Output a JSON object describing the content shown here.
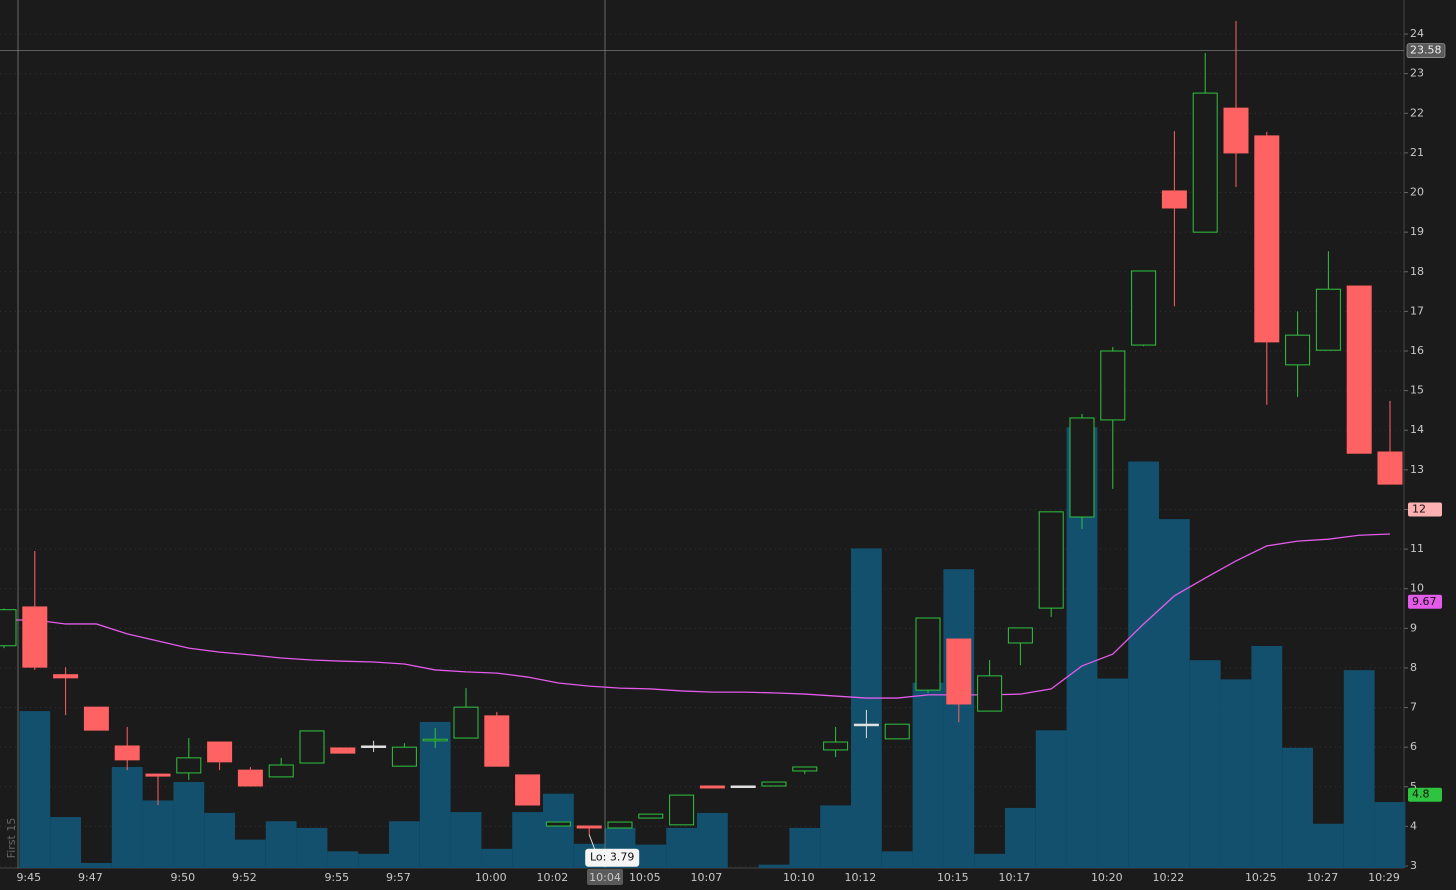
{
  "chart_data": {
    "type": "candlestick",
    "categories": [
      null,
      "9:45",
      null,
      "9:47",
      null,
      null,
      "9:50",
      null,
      "9:52",
      null,
      null,
      "9:55",
      null,
      "9:57",
      null,
      null,
      "10:00",
      null,
      "10:02",
      null,
      "10:04",
      "10:05",
      null,
      "10:07",
      null,
      null,
      "10:10",
      null,
      "10:12",
      null,
      null,
      "10:15",
      null,
      "10:17",
      null,
      null,
      "10:20",
      null,
      "10:22",
      null,
      null,
      "10:25",
      null,
      "10:27",
      null,
      "10:29"
    ],
    "open": [
      8.56,
      9.54,
      7.83,
      7.01,
      6.03,
      5.32,
      5.35,
      6.13,
      5.42,
      5.25,
      5.6,
      5.98,
      6.03,
      5.52,
      6.16,
      6.23,
      6.79,
      5.3,
      4.01,
      4.01,
      3.96,
      4.21,
      4.04,
      5.02,
      5.02,
      5.02,
      5.4,
      5.93,
      6.58,
      6.21,
      7.44,
      8.73,
      6.91,
      8.63,
      9.51,
      11.81,
      14.26,
      16.15,
      20.04,
      19.0,
      22.13,
      21.43,
      15.65,
      16.02,
      17.64,
      13.45
    ],
    "high": [
      9.5,
      10.95,
      8.02,
      7.01,
      6.51,
      5.32,
      6.23,
      6.13,
      5.5,
      5.73,
      6.41,
      5.98,
      6.16,
      6.1,
      6.48,
      7.49,
      6.89,
      5.3,
      4.11,
      4.01,
      4.11,
      4.31,
      4.79,
      5.02,
      5.02,
      5.12,
      5.5,
      6.51,
      6.94,
      6.58,
      9.26,
      8.73,
      8.2,
      9.01,
      11.94,
      14.41,
      16.1,
      18.02,
      21.55,
      23.52,
      24.33,
      21.53,
      17.0,
      18.52,
      17.64,
      14.74
    ],
    "low": [
      8.5,
      7.95,
      6.81,
      6.43,
      5.42,
      4.54,
      5.17,
      5.42,
      5.02,
      5.25,
      5.6,
      5.85,
      5.88,
      5.52,
      5.98,
      6.23,
      5.52,
      4.54,
      4.01,
      3.79,
      3.96,
      4.21,
      4.04,
      4.97,
      5.02,
      5.02,
      5.32,
      5.75,
      6.23,
      6.21,
      7.37,
      6.63,
      6.91,
      8.07,
      9.29,
      11.51,
      12.52,
      16.12,
      17.13,
      19.0,
      20.14,
      14.64,
      14.84,
      16.02,
      13.42,
      12.64
    ],
    "close": [
      9.47,
      8.02,
      7.75,
      6.43,
      5.68,
      5.27,
      5.73,
      5.63,
      5.02,
      5.55,
      6.41,
      5.85,
      6.03,
      6.0,
      6.2,
      7.01,
      5.52,
      4.54,
      4.11,
      3.96,
      4.11,
      4.31,
      4.79,
      4.97,
      5.02,
      5.12,
      5.5,
      6.13,
      6.58,
      6.58,
      9.26,
      7.09,
      7.8,
      9.01,
      11.94,
      14.31,
      16.0,
      18.02,
      19.61,
      22.51,
      21.0,
      16.23,
      16.4,
      17.56,
      13.42,
      12.64
    ],
    "volume": [
      null,
      18.8,
      6.1,
      0.6,
      12.1,
      8.1,
      10.3,
      6.6,
      3.4,
      5.6,
      4.8,
      2.0,
      1.7,
      5.6,
      17.5,
      6.7,
      2.3,
      6.7,
      8.9,
      2.9,
      4.8,
      2.8,
      4.8,
      6.6,
      0,
      0.4,
      4.8,
      7.5,
      38.3,
      2.0,
      22.2,
      35.8,
      1.7,
      7.2,
      16.5,
      52.8,
      22.7,
      48.7,
      41.8,
      24.9,
      22.6,
      26.6,
      14.4,
      5.3,
      23.7,
      7.9
    ],
    "ma": {
      "color": "#e25be9",
      "values": [
        9.21,
        9.21,
        9.11,
        9.11,
        8.86,
        8.68,
        8.5,
        8.4,
        8.33,
        8.25,
        8.2,
        8.17,
        8.15,
        8.1,
        7.95,
        7.9,
        7.87,
        7.77,
        7.62,
        7.54,
        7.49,
        7.47,
        7.42,
        7.39,
        7.39,
        7.37,
        7.34,
        7.29,
        7.24,
        7.24,
        7.32,
        7.32,
        7.32,
        7.34,
        7.47,
        8.05,
        8.35,
        9.11,
        9.82,
        10.27,
        10.7,
        11.08,
        11.2,
        11.25,
        11.35,
        11.38
      ]
    },
    "up_color": "#2fc43f",
    "down_color": "#ff6262",
    "doji_color": "#e0e0e0",
    "volume_color": "#12506d",
    "ylim": [
      2.95,
      24.86
    ],
    "volume_ylim": [
      0,
      104
    ],
    "yticks": [
      3,
      4,
      5,
      6,
      7,
      8,
      9,
      10,
      11,
      12,
      13,
      14,
      15,
      16,
      17,
      18,
      19,
      20,
      21,
      22,
      23,
      24
    ],
    "grid": true,
    "crosshair": {
      "value": 23.58,
      "label": "23.58"
    },
    "crosshair_category": "10:04",
    "markers": [
      {
        "value": 12,
        "label": "12",
        "color": "#ffb0b0"
      },
      {
        "value": 9.67,
        "label": "9.67",
        "color": "#e25be9"
      },
      {
        "value": 4.8,
        "label": "4.8",
        "color": "#2fc43f"
      }
    ],
    "low_annotation": {
      "value": 3.79,
      "label": "Lo: 3.79"
    },
    "watermark": "First 15"
  }
}
